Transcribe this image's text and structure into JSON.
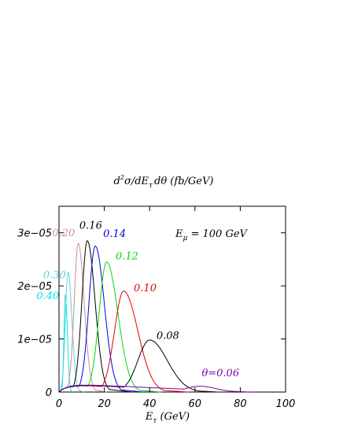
{
  "chart_data": {
    "type": "line",
    "title_parts": {
      "d": "d",
      "sup": "2",
      "sigma_dEdtheta": "σ/dE",
      "tau_sub": "τ",
      "rest": "dθ (fb/GeV)"
    },
    "xlabel_parts": {
      "E": "E",
      "sub": "τ",
      "unit": " (GeV)"
    },
    "annotation": {
      "E": "E",
      "sub": "μ",
      "rest": " = 100 GeV"
    },
    "xlim": [
      0,
      100
    ],
    "ylim": [
      0,
      3.5e-05
    ],
    "xticks": [
      "0",
      "20",
      "40",
      "60",
      "80",
      "100"
    ],
    "yticks": [
      "0",
      "1e−05",
      "2e−05",
      "3e−05"
    ],
    "xtick_values": [
      0,
      20,
      40,
      60,
      80,
      100
    ],
    "ytick_values": [
      0,
      1e-05,
      2e-05,
      3e-05
    ],
    "grid": false,
    "series": [
      {
        "label": "0.40",
        "color": "#00e8e8",
        "peak_x": 2.8,
        "peak_y": 1.83e-05,
        "width_l": 0.6,
        "width_r": 0.9,
        "end_x": 6
      },
      {
        "label": "0.30",
        "color": "#5fd0d8",
        "peak_x": 4.0,
        "peak_y": 2.25e-05,
        "width_l": 1.2,
        "width_r": 1.7,
        "end_x": 11
      },
      {
        "label": "0.20",
        "color": "#c89090",
        "peak_x": 8.5,
        "peak_y": 2.8e-05,
        "width_l": 1.8,
        "width_r": 2.6,
        "end_x": 21
      },
      {
        "label": "0.16",
        "color": "#000000",
        "peak_x": 12.5,
        "peak_y": 2.85e-05,
        "width_l": 2.4,
        "width_r": 3.4,
        "end_x": 32
      },
      {
        "label": "0.14",
        "color": "#0000e0",
        "peak_x": 16.0,
        "peak_y": 2.75e-05,
        "width_l": 2.8,
        "width_r": 4.0,
        "end_x": 37
      },
      {
        "label": "0.12",
        "color": "#00d800",
        "peak_x": 21.0,
        "peak_y": 2.45e-05,
        "width_l": 3.3,
        "width_r": 5.0,
        "end_x": 45
      },
      {
        "label": "0.10",
        "color": "#e00000",
        "peak_x": 28.5,
        "peak_y": 1.9e-05,
        "width_l": 4.0,
        "width_r": 6.3,
        "end_x": 57
      },
      {
        "label": "0.08",
        "color": "#000000",
        "peak_x": 40.0,
        "peak_y": 9.8e-06,
        "width_l": 5.2,
        "width_r": 7.8,
        "end_x": 70
      },
      {
        "label": "θ=0.06",
        "color": "#8000a8",
        "peak_x": 62.0,
        "peak_y": 1.1e-06,
        "width_l": 6.0,
        "width_r": 7.0,
        "end_x": 84
      }
    ],
    "label_positions": [
      {
        "label": "0.40",
        "x": -10,
        "y": 1.75e-05
      },
      {
        "label": "0.30",
        "x": -7,
        "y": 2.14e-05
      },
      {
        "label": "0.20",
        "x": -3,
        "y": 2.94e-05
      },
      {
        "label": "0.16",
        "x": 9,
        "y": 3.08e-05
      },
      {
        "label": "0.14",
        "x": 19.5,
        "y": 2.92e-05
      },
      {
        "label": "0.12",
        "x": 25,
        "y": 2.5e-05
      },
      {
        "label": "0.10",
        "x": 33,
        "y": 1.9e-05
      },
      {
        "label": "0.08",
        "x": 43,
        "y": 1e-05
      },
      {
        "label": "θ=0.06",
        "x": 63,
        "y": 3e-06
      }
    ]
  }
}
